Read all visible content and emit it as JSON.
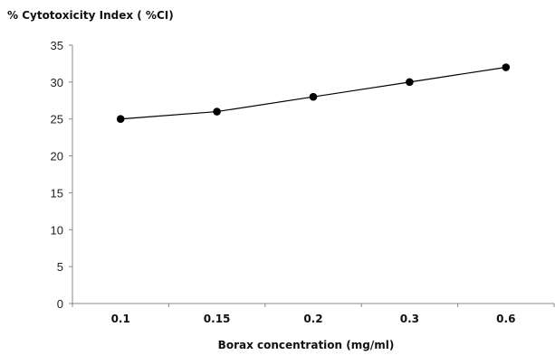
{
  "chart_data": {
    "type": "line",
    "title": "",
    "ylabel": "% Cytotoxicity Index ( %CI)",
    "xlabel": "Borax concentration (mg/ml)",
    "categories": [
      "0.1",
      "0.15",
      "0.2",
      "0.3",
      "0.6"
    ],
    "series": [
      {
        "values": [
          25,
          26,
          28,
          30,
          32
        ]
      }
    ],
    "ylim": [
      0,
      35
    ],
    "yticks": [
      "0",
      "5",
      "10",
      "15",
      "20",
      "25",
      "30",
      "35"
    ],
    "grid": false,
    "legend": "none",
    "line_color": "#000000",
    "marker_color": "#000000"
  }
}
